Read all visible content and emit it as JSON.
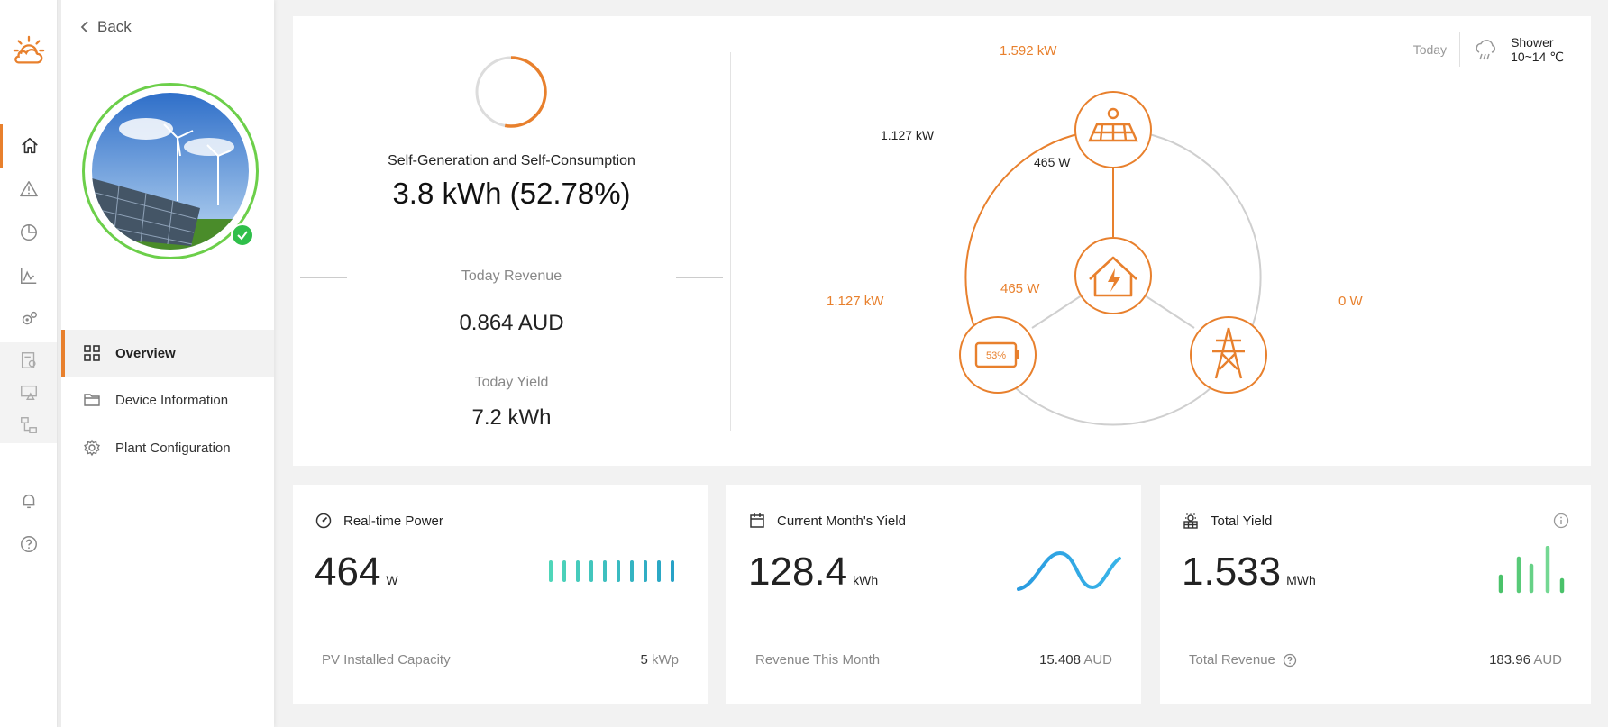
{
  "colors": {
    "accent": "#e8802d",
    "success": "#2fbf4a",
    "teal": "#3bc8b6",
    "blue": "#2a9be0",
    "green": "#4fcf78"
  },
  "rail": {
    "items": [
      "home-icon",
      "alert-icon",
      "pie-chart-icon",
      "line-chart-icon",
      "gears-icon",
      "report-icon",
      "screen-alert-icon",
      "hierarchy-icon",
      "bell-icon",
      "help-icon"
    ]
  },
  "sidebar": {
    "back_label": "Back",
    "nav": [
      {
        "label": "Overview",
        "icon": "grid-icon",
        "active": true
      },
      {
        "label": "Device Information",
        "icon": "folder-icon",
        "active": false
      },
      {
        "label": "Plant Configuration",
        "icon": "gear-icon",
        "active": false
      }
    ]
  },
  "summary": {
    "sgsc_label": "Self-Generation and Self-Consumption",
    "sgsc_value": "3.8 kWh (52.78%)",
    "sgsc_ratio": 0.5278,
    "revenue_label": "Today Revenue",
    "revenue_value": "0.864 AUD",
    "yield_label": "Today Yield",
    "yield_value": "7.2 kWh"
  },
  "flow": {
    "pv_power": "1.592 kW",
    "pv_to_battery": "1.127 kW",
    "pv_to_home": "465 W",
    "home_power": "465 W",
    "battery_power": "1.127 kW",
    "battery_soc": "53%",
    "grid_power": "0 W"
  },
  "weather": {
    "day": "Today",
    "condition": "Shower",
    "temperature": "10~14 ℃"
  },
  "kpis": [
    {
      "title": "Real-time Power",
      "icon": "speedometer-icon",
      "value": "464",
      "unit": "W",
      "foot_label": "PV Installed Capacity",
      "foot_value": "5",
      "foot_unit": "kWp"
    },
    {
      "title": "Current Month's Yield",
      "icon": "calendar-icon",
      "value": "128.4",
      "unit": "kWh",
      "foot_label": "Revenue This Month",
      "foot_value": "15.408",
      "foot_unit": "AUD"
    },
    {
      "title": "Total Yield",
      "icon": "sun-panel-icon",
      "value": "1.533",
      "unit": "MWh",
      "foot_label": "Total Revenue",
      "foot_value": "183.96",
      "foot_unit": "AUD"
    }
  ]
}
